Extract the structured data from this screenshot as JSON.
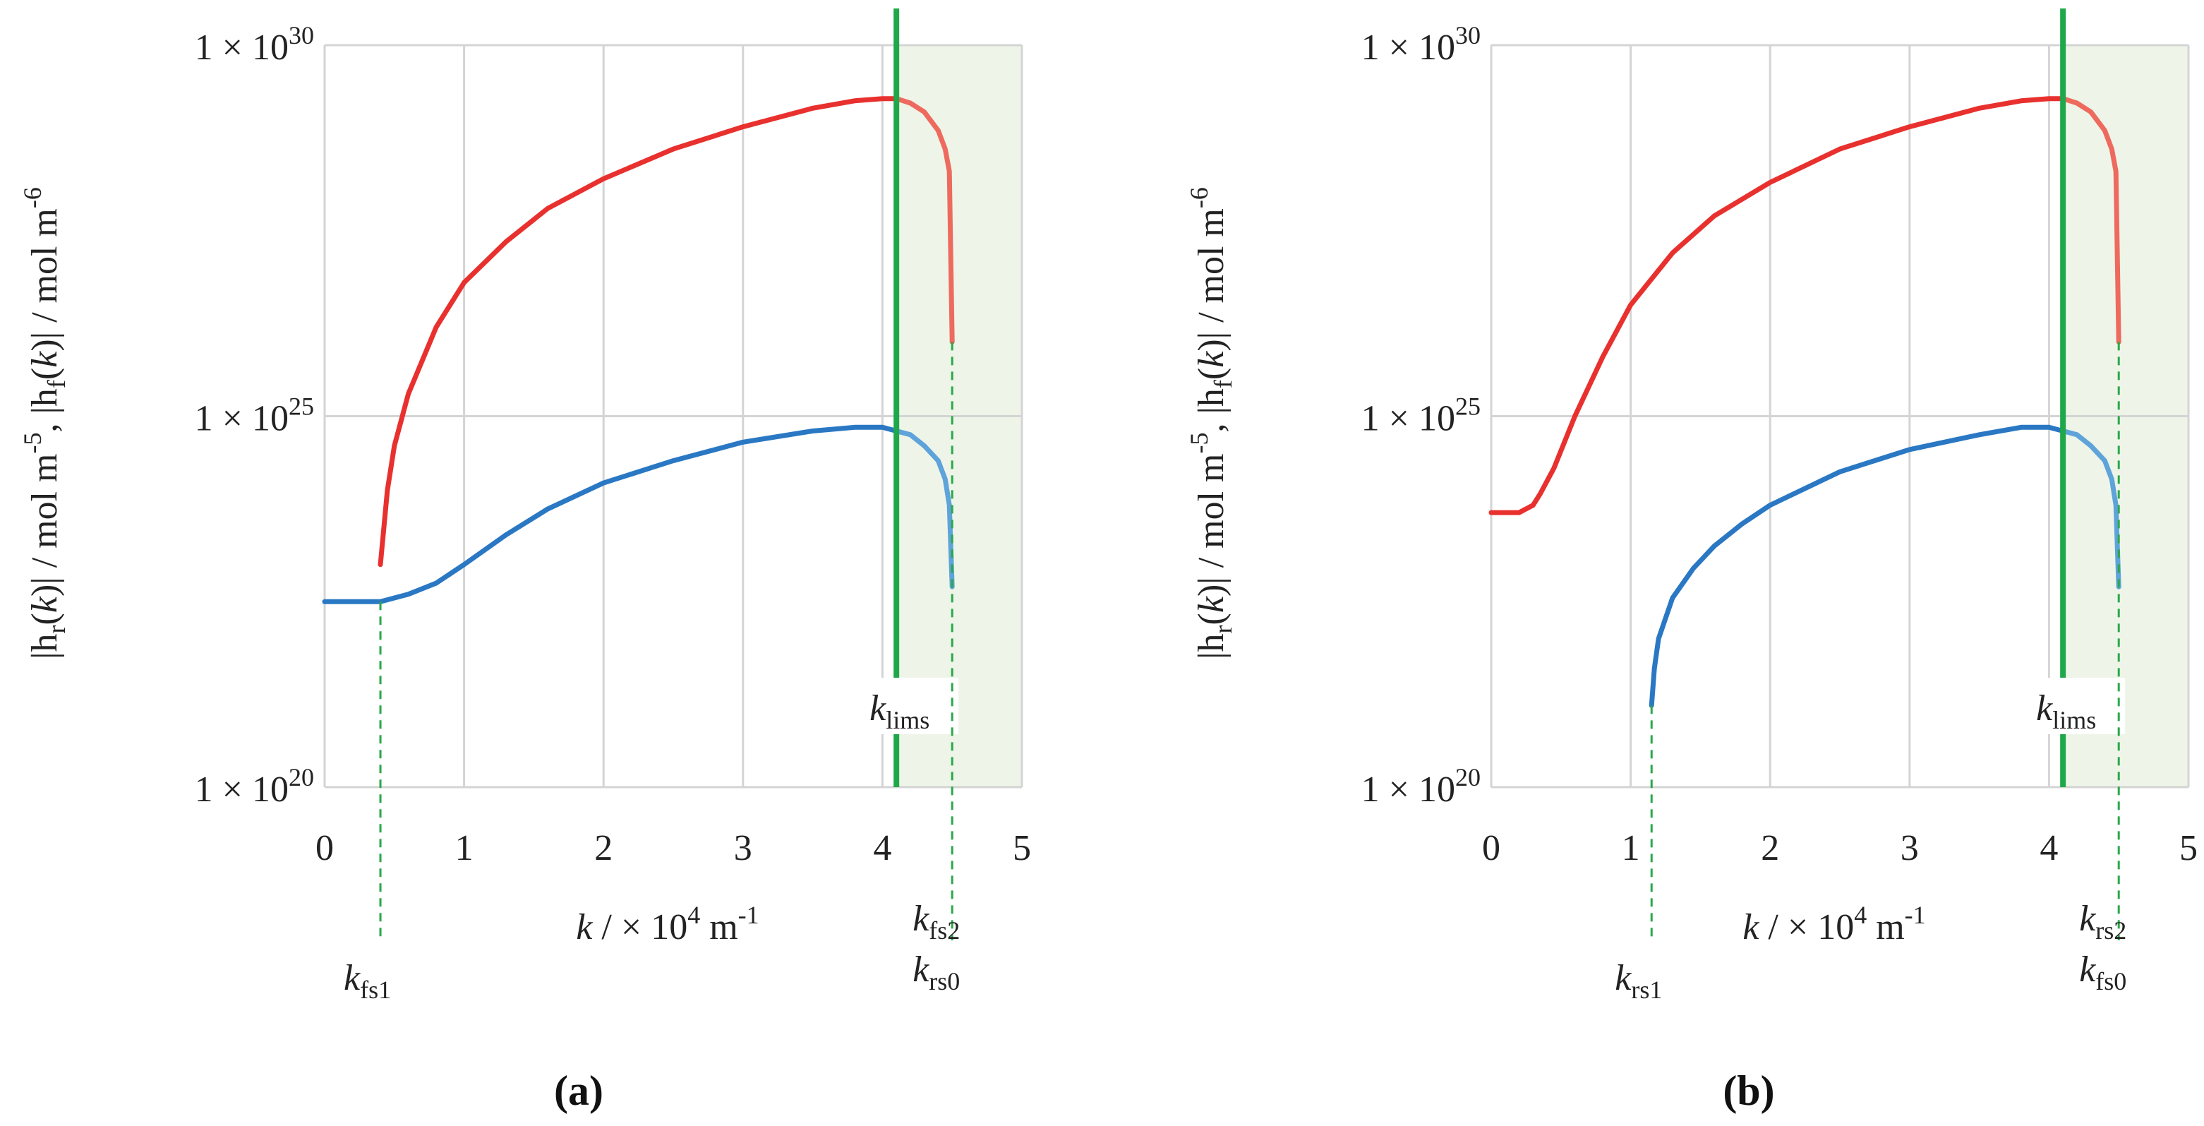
{
  "figure": {
    "panel_labels": [
      "(a)",
      "(b)"
    ]
  },
  "chart_data": [
    {
      "type": "line",
      "panel": "(a)",
      "ylabel": "|h_r(k)| / mol m^-5, |h_f(k)| / mol m^-6",
      "ylabel_parts": {
        "p1": "|h",
        "s1": "r",
        "p2": "(",
        "k1": "k",
        "p3": ")| / mol m",
        "e1": "-5",
        "p4": ", |h",
        "s2": "f",
        "p5": "(",
        "k2": "k",
        "p6": ")| / mol m",
        "e2": "-6"
      },
      "xlabel": "k / ×10^4 m^-1",
      "xlabel_parts": {
        "k": "k",
        "mid": " /  × 10",
        "e": "4",
        "unit": " m",
        "e2": "-1"
      },
      "y_scale": "log10",
      "ylim_exp": [
        20,
        30
      ],
      "xlim": [
        0,
        5
      ],
      "x_ticks": [
        0,
        1,
        2,
        3,
        4,
        5
      ],
      "x_tick_labels": [
        "0",
        "1",
        "2",
        "3",
        "4",
        "5"
      ],
      "y_ticks_exp": [
        20,
        25,
        30
      ],
      "y_tick_labels": [
        {
          "base": "1 × 10",
          "exp": "20"
        },
        {
          "base": "1 × 10",
          "exp": "25"
        },
        {
          "base": "1 × 10",
          "exp": "30"
        }
      ],
      "grid": true,
      "shaded_region": {
        "x": [
          4.1,
          5.0
        ],
        "color": "#eef5e8"
      },
      "vertical_line": {
        "x": 4.1,
        "color": "#1fa84a",
        "label": {
          "k": "k",
          "sub": "lims"
        }
      },
      "dashed_markers": [
        {
          "x": 0.4,
          "from_exp": 22.5,
          "labels": [
            {
              "k": "k",
              "sub": "fs1"
            }
          ]
        },
        {
          "x": 4.5,
          "from_exp": 26.0,
          "labels": [
            {
              "k": "k",
              "sub": "fs2"
            },
            {
              "k": "k",
              "sub": "rs0"
            }
          ]
        }
      ],
      "series": [
        {
          "name": "|h_r(k)|",
          "color": "#e8312e",
          "color_light": "#ee6a5e",
          "x": [
            0.4,
            0.45,
            0.5,
            0.6,
            0.8,
            1.0,
            1.3,
            1.6,
            2.0,
            2.5,
            3.0,
            3.5,
            3.8,
            4.0,
            4.1,
            4.2,
            4.3,
            4.4,
            4.45,
            4.48,
            4.5
          ],
          "log10_y": [
            23.0,
            24.0,
            24.6,
            25.3,
            26.2,
            26.8,
            27.35,
            27.8,
            28.2,
            28.6,
            28.9,
            29.15,
            29.25,
            29.28,
            29.28,
            29.22,
            29.1,
            28.85,
            28.6,
            28.3,
            26.0
          ]
        },
        {
          "name": "|h_f(k)|",
          "color": "#2a78c3",
          "color_light": "#5ea3d9",
          "x": [
            0.0,
            0.2,
            0.4,
            0.6,
            0.8,
            1.0,
            1.3,
            1.6,
            2.0,
            2.5,
            3.0,
            3.5,
            3.8,
            4.0,
            4.1,
            4.2,
            4.3,
            4.4,
            4.45,
            4.48,
            4.5
          ],
          "log10_y": [
            22.5,
            22.5,
            22.5,
            22.6,
            22.75,
            23.0,
            23.4,
            23.75,
            24.1,
            24.4,
            24.65,
            24.8,
            24.85,
            24.85,
            24.8,
            24.75,
            24.6,
            24.4,
            24.15,
            23.8,
            22.7
          ]
        }
      ]
    },
    {
      "type": "line",
      "panel": "(b)",
      "ylabel": "|h_r(k)| / mol m^-5, |h_f(k)| / mol m^-6",
      "ylabel_parts": {
        "p1": "|h",
        "s1": "r",
        "p2": "(",
        "k1": "k",
        "p3": ")| / mol m",
        "e1": "-5",
        "p4": ", |h",
        "s2": "f",
        "p5": "(",
        "k2": "k",
        "p6": ")| / mol m",
        "e2": "-6"
      },
      "xlabel": "k / ×10^4 m^-1",
      "xlabel_parts": {
        "k": "k",
        "mid": " /  × 10",
        "e": "4",
        "unit": " m",
        "e2": "-1"
      },
      "y_scale": "log10",
      "ylim_exp": [
        20,
        30
      ],
      "xlim": [
        0,
        5
      ],
      "x_ticks": [
        0,
        1,
        2,
        3,
        4,
        5
      ],
      "x_tick_labels": [
        "0",
        "1",
        "2",
        "3",
        "4",
        "5"
      ],
      "y_ticks_exp": [
        20,
        25,
        30
      ],
      "y_tick_labels": [
        {
          "base": "1 × 10",
          "exp": "20"
        },
        {
          "base": "1 × 10",
          "exp": "25"
        },
        {
          "base": "1 × 10",
          "exp": "30"
        }
      ],
      "grid": true,
      "shaded_region": {
        "x": [
          4.1,
          5.0
        ],
        "color": "#eef5e8"
      },
      "vertical_line": {
        "x": 4.1,
        "color": "#1fa84a",
        "label": {
          "k": "k",
          "sub": "lims"
        }
      },
      "dashed_markers": [
        {
          "x": 1.15,
          "from_exp": 21.1,
          "labels": [
            {
              "k": "k",
              "sub": "rs1"
            }
          ]
        },
        {
          "x": 4.5,
          "from_exp": 26.0,
          "labels": [
            {
              "k": "k",
              "sub": "rs2"
            },
            {
              "k": "k",
              "sub": "fs0"
            }
          ]
        }
      ],
      "series": [
        {
          "name": "|h_r(k)|",
          "color": "#e8312e",
          "color_light": "#ee6a5e",
          "x": [
            0.0,
            0.2,
            0.3,
            0.35,
            0.45,
            0.6,
            0.8,
            1.0,
            1.3,
            1.6,
            2.0,
            2.5,
            3.0,
            3.5,
            3.8,
            4.0,
            4.1,
            4.2,
            4.3,
            4.4,
            4.45,
            4.48,
            4.5
          ],
          "log10_y": [
            23.7,
            23.7,
            23.8,
            23.95,
            24.3,
            25.0,
            25.8,
            26.5,
            27.2,
            27.7,
            28.15,
            28.6,
            28.9,
            29.15,
            29.25,
            29.28,
            29.28,
            29.22,
            29.1,
            28.85,
            28.6,
            28.3,
            26.0
          ]
        },
        {
          "name": "|h_f(k)|",
          "color": "#2a78c3",
          "color_light": "#5ea3d9",
          "x": [
            1.15,
            1.17,
            1.2,
            1.3,
            1.45,
            1.6,
            1.8,
            2.0,
            2.5,
            3.0,
            3.5,
            3.8,
            4.0,
            4.1,
            4.2,
            4.3,
            4.4,
            4.45,
            4.48,
            4.5
          ],
          "log10_y": [
            21.1,
            21.6,
            22.0,
            22.55,
            22.95,
            23.25,
            23.55,
            23.8,
            24.25,
            24.55,
            24.75,
            24.85,
            24.85,
            24.8,
            24.75,
            24.6,
            24.4,
            24.15,
            23.8,
            22.7
          ]
        }
      ]
    }
  ]
}
